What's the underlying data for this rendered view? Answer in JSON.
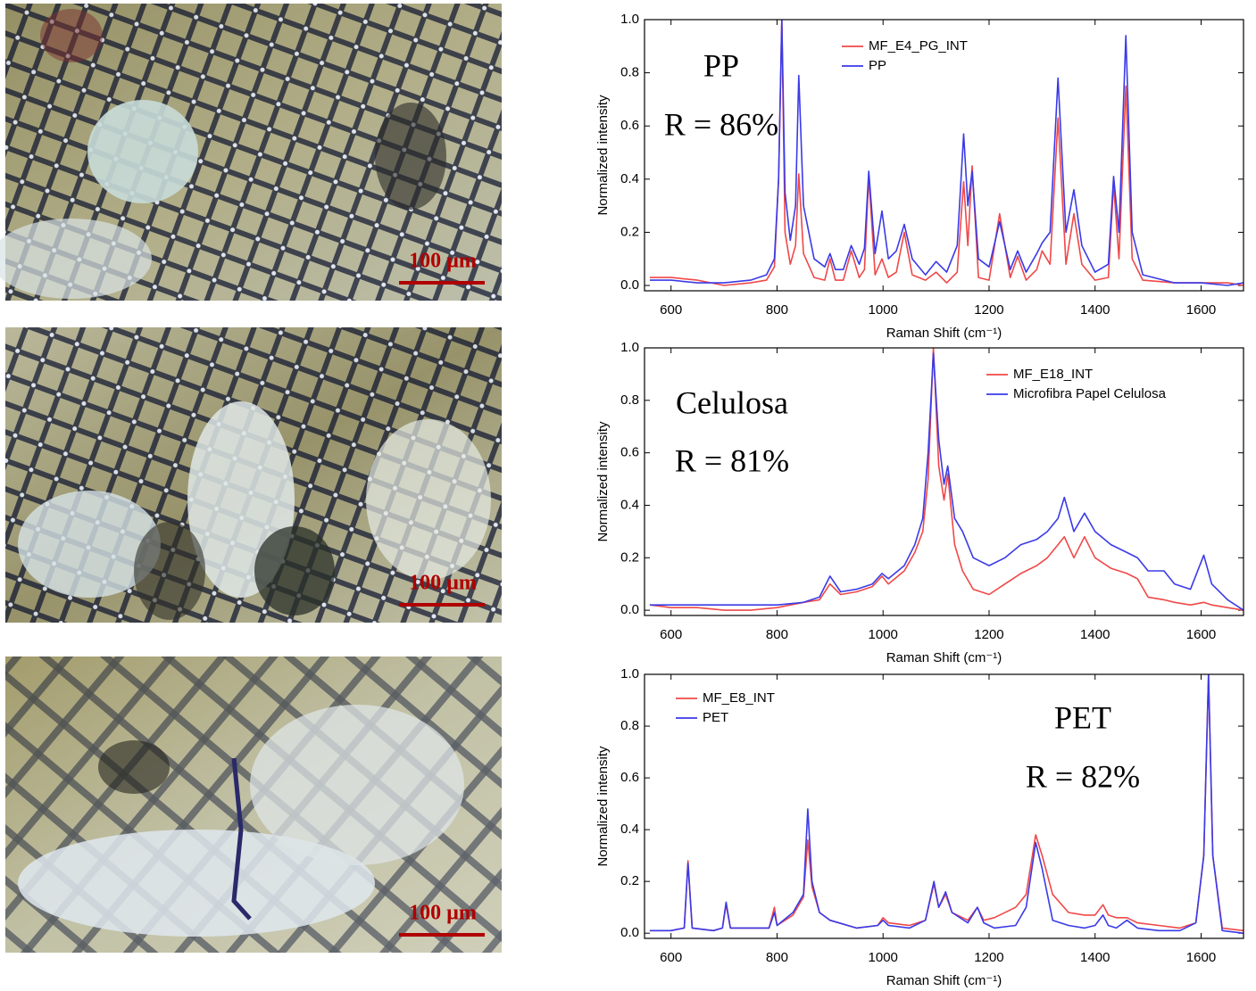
{
  "images": [
    {
      "scale_bar": "100 µm"
    },
    {
      "scale_bar": "100 µm"
    },
    {
      "scale_bar": "100 µm"
    }
  ],
  "chart_data": [
    {
      "type": "line",
      "xlabel": "Raman Shift (cm⁻¹)",
      "ylabel": "Normalized intensity",
      "annotations": [
        "PP",
        "R = 86%"
      ],
      "legend": "upper center",
      "xlim": [
        550,
        1680
      ],
      "ylim": [
        -0.02,
        1.0
      ],
      "xticks": [
        600,
        800,
        1000,
        1200,
        1400,
        1600
      ],
      "yticks": [
        {
          "value": 0,
          "label": "0.0"
        },
        0.2,
        0.4,
        0.6,
        0.8,
        {
          "value": 1,
          "label": "1.0"
        }
      ],
      "x": [
        560,
        600,
        650,
        700,
        750,
        780,
        795,
        803,
        809,
        815,
        825,
        835,
        841,
        850,
        870,
        890,
        900,
        910,
        925,
        940,
        955,
        965,
        973,
        985,
        998,
        1010,
        1025,
        1040,
        1055,
        1080,
        1100,
        1120,
        1140,
        1152,
        1160,
        1168,
        1180,
        1200,
        1220,
        1240,
        1254,
        1270,
        1290,
        1300,
        1315,
        1330,
        1345,
        1360,
        1375,
        1400,
        1425,
        1435,
        1445,
        1458,
        1470,
        1490,
        1550,
        1600,
        1650,
        1680
      ],
      "series": [
        {
          "name": "MF_E4_PG_INT",
          "color": "#f04848",
          "values": [
            0.03,
            0.03,
            0.02,
            0.0,
            0.01,
            0.02,
            0.07,
            0.4,
            1.0,
            0.2,
            0.08,
            0.15,
            0.42,
            0.12,
            0.03,
            0.02,
            0.1,
            0.02,
            0.02,
            0.13,
            0.03,
            0.06,
            0.41,
            0.04,
            0.1,
            0.03,
            0.05,
            0.2,
            0.04,
            0.02,
            0.05,
            0.01,
            0.05,
            0.39,
            0.15,
            0.45,
            0.03,
            0.02,
            0.27,
            0.03,
            0.11,
            0.02,
            0.06,
            0.13,
            0.08,
            0.63,
            0.08,
            0.27,
            0.08,
            0.02,
            0.03,
            0.38,
            0.1,
            0.75,
            0.1,
            0.02,
            0.01,
            0.01,
            0.01,
            0.0
          ]
        },
        {
          "name": "PP",
          "color": "#3a3ae8",
          "values": [
            0.02,
            0.02,
            0.01,
            0.01,
            0.02,
            0.04,
            0.1,
            0.4,
            1.0,
            0.35,
            0.17,
            0.3,
            0.79,
            0.3,
            0.1,
            0.07,
            0.12,
            0.06,
            0.06,
            0.15,
            0.08,
            0.14,
            0.43,
            0.12,
            0.28,
            0.1,
            0.13,
            0.23,
            0.1,
            0.04,
            0.09,
            0.05,
            0.15,
            0.57,
            0.3,
            0.43,
            0.1,
            0.07,
            0.24,
            0.06,
            0.13,
            0.05,
            0.12,
            0.16,
            0.2,
            0.78,
            0.2,
            0.36,
            0.15,
            0.05,
            0.08,
            0.41,
            0.2,
            0.94,
            0.2,
            0.04,
            0.01,
            0.01,
            0.0,
            0.01
          ]
        }
      ]
    },
    {
      "type": "line",
      "xlabel": "Raman Shift (cm⁻¹)",
      "ylabel": "Normalized intensity",
      "annotations": [
        "Celulosa",
        "R = 81%"
      ],
      "legend": "upper right",
      "xlim": [
        550,
        1680
      ],
      "ylim": [
        -0.02,
        1.0
      ],
      "xticks": [
        600,
        800,
        1000,
        1200,
        1400,
        1600
      ],
      "yticks": [
        {
          "value": 0,
          "label": "0.0"
        },
        0.2,
        0.4,
        0.6,
        0.8,
        {
          "value": 1,
          "label": "1.0"
        }
      ],
      "x": [
        560,
        600,
        650,
        700,
        750,
        800,
        850,
        880,
        900,
        920,
        950,
        980,
        998,
        1010,
        1040,
        1060,
        1075,
        1085,
        1095,
        1105,
        1115,
        1122,
        1135,
        1150,
        1170,
        1200,
        1230,
        1260,
        1290,
        1310,
        1330,
        1342,
        1360,
        1380,
        1400,
        1430,
        1460,
        1480,
        1500,
        1530,
        1550,
        1580,
        1605,
        1620,
        1650,
        1680
      ],
      "series": [
        {
          "name": "MF_E18_INT",
          "color": "#f04848",
          "values": [
            0.02,
            0.01,
            0.01,
            0.0,
            0.0,
            0.01,
            0.03,
            0.04,
            0.1,
            0.06,
            0.07,
            0.09,
            0.13,
            0.1,
            0.15,
            0.22,
            0.3,
            0.5,
            1.0,
            0.55,
            0.42,
            0.52,
            0.25,
            0.15,
            0.08,
            0.06,
            0.1,
            0.14,
            0.17,
            0.2,
            0.25,
            0.28,
            0.2,
            0.28,
            0.2,
            0.16,
            0.14,
            0.12,
            0.05,
            0.04,
            0.03,
            0.02,
            0.03,
            0.02,
            0.01,
            0.0
          ]
        },
        {
          "name": "Microfibra Papel Celulosa",
          "color": "#3a3ae8",
          "values": [
            0.02,
            0.02,
            0.02,
            0.02,
            0.02,
            0.02,
            0.03,
            0.05,
            0.13,
            0.07,
            0.08,
            0.1,
            0.14,
            0.12,
            0.17,
            0.25,
            0.35,
            0.6,
            0.98,
            0.65,
            0.48,
            0.55,
            0.35,
            0.3,
            0.2,
            0.17,
            0.2,
            0.25,
            0.27,
            0.3,
            0.35,
            0.43,
            0.3,
            0.37,
            0.3,
            0.25,
            0.22,
            0.2,
            0.15,
            0.15,
            0.1,
            0.08,
            0.21,
            0.1,
            0.04,
            0.0
          ]
        }
      ]
    },
    {
      "type": "line",
      "xlabel": "Raman Shift (cm⁻¹)",
      "ylabel": "Normalized intensity",
      "annotations": [
        "PET",
        "R = 82%"
      ],
      "legend": "upper left",
      "xlim": [
        550,
        1680
      ],
      "ylim": [
        -0.02,
        1.0
      ],
      "xticks": [
        600,
        800,
        1000,
        1200,
        1400,
        1600
      ],
      "yticks": [
        {
          "value": 0,
          "label": "0.0"
        },
        0.2,
        0.4,
        0.6,
        0.8,
        {
          "value": 1,
          "label": "1.0"
        }
      ],
      "x": [
        560,
        600,
        625,
        632,
        640,
        680,
        697,
        704,
        712,
        750,
        785,
        795,
        800,
        830,
        850,
        858,
        866,
        880,
        900,
        950,
        990,
        1000,
        1010,
        1050,
        1080,
        1096,
        1105,
        1118,
        1130,
        1160,
        1178,
        1190,
        1210,
        1250,
        1270,
        1288,
        1300,
        1320,
        1350,
        1380,
        1400,
        1415,
        1425,
        1440,
        1460,
        1480,
        1520,
        1560,
        1590,
        1605,
        1614,
        1622,
        1640,
        1680
      ],
      "series": [
        {
          "name": "MF_E8_INT",
          "color": "#f04848",
          "values": [
            0.01,
            0.01,
            0.02,
            0.28,
            0.02,
            0.01,
            0.02,
            0.11,
            0.02,
            0.02,
            0.02,
            0.1,
            0.03,
            0.07,
            0.14,
            0.36,
            0.18,
            0.08,
            0.05,
            0.02,
            0.03,
            0.06,
            0.04,
            0.03,
            0.05,
            0.19,
            0.1,
            0.15,
            0.08,
            0.05,
            0.1,
            0.05,
            0.06,
            0.1,
            0.15,
            0.38,
            0.3,
            0.15,
            0.08,
            0.07,
            0.07,
            0.11,
            0.07,
            0.06,
            0.06,
            0.04,
            0.03,
            0.02,
            0.04,
            0.3,
            1.0,
            0.3,
            0.02,
            0.01
          ]
        },
        {
          "name": "PET",
          "color": "#3a3ae8",
          "values": [
            0.01,
            0.01,
            0.02,
            0.27,
            0.02,
            0.01,
            0.02,
            0.12,
            0.02,
            0.02,
            0.02,
            0.08,
            0.03,
            0.08,
            0.15,
            0.48,
            0.2,
            0.08,
            0.05,
            0.02,
            0.03,
            0.05,
            0.03,
            0.02,
            0.05,
            0.2,
            0.1,
            0.16,
            0.08,
            0.04,
            0.1,
            0.04,
            0.02,
            0.03,
            0.1,
            0.35,
            0.25,
            0.05,
            0.03,
            0.02,
            0.03,
            0.07,
            0.03,
            0.02,
            0.05,
            0.02,
            0.01,
            0.01,
            0.04,
            0.3,
            1.0,
            0.3,
            0.01,
            0.0
          ]
        }
      ]
    }
  ]
}
